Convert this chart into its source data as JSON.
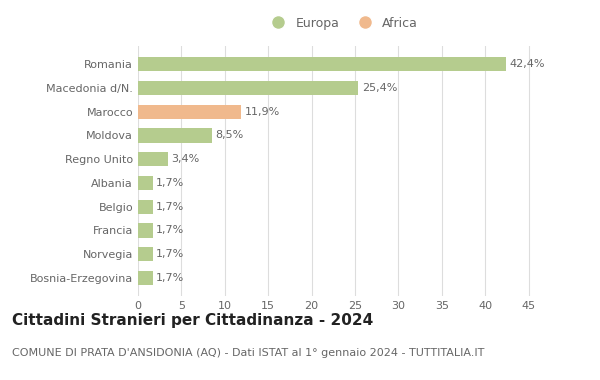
{
  "categories": [
    "Bosnia-Erzegovina",
    "Norvegia",
    "Francia",
    "Belgio",
    "Albania",
    "Regno Unito",
    "Moldova",
    "Marocco",
    "Macedonia d/N.",
    "Romania"
  ],
  "values": [
    1.7,
    1.7,
    1.7,
    1.7,
    1.7,
    3.4,
    8.5,
    11.9,
    25.4,
    42.4
  ],
  "labels": [
    "1,7%",
    "1,7%",
    "1,7%",
    "1,7%",
    "1,7%",
    "3,4%",
    "8,5%",
    "11,9%",
    "25,4%",
    "42,4%"
  ],
  "colors": [
    "#b5cc8e",
    "#b5cc8e",
    "#b5cc8e",
    "#b5cc8e",
    "#b5cc8e",
    "#b5cc8e",
    "#b5cc8e",
    "#f0b98d",
    "#b5cc8e",
    "#b5cc8e"
  ],
  "legend_labels": [
    "Europa",
    "Africa"
  ],
  "legend_colors": [
    "#b5cc8e",
    "#f0b98d"
  ],
  "title": "Cittadini Stranieri per Cittadinanza - 2024",
  "subtitle": "COMUNE DI PRATA D'ANSIDONIA (AQ) - Dati ISTAT al 1° gennaio 2024 - TUTTITALIA.IT",
  "xlim": [
    0,
    47
  ],
  "xticks": [
    0,
    5,
    10,
    15,
    20,
    25,
    30,
    35,
    40,
    45
  ],
  "background_color": "#ffffff",
  "grid_color": "#dddddd",
  "bar_height": 0.6,
  "title_fontsize": 11,
  "subtitle_fontsize": 8,
  "label_fontsize": 8,
  "tick_fontsize": 8,
  "legend_fontsize": 9,
  "text_color": "#666666",
  "title_color": "#222222"
}
